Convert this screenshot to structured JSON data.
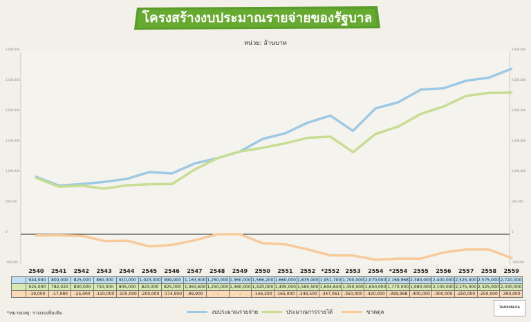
{
  "title": "โครงสร้างงบประมาณรายจ่ายของรัฐบาล",
  "unit_label": "หน่วย: ล้านบาท",
  "footnote": "*หมายเหตุ: รวมงบเพิ่มเติม",
  "logo": {
    "text": "THAIPUBLICA"
  },
  "colors": {
    "expenditure": "#9ec9e5",
    "revenue": "#c6dd93",
    "balance": "#f8c99b",
    "banner": "#5a9d2b"
  },
  "chart_data": {
    "type": "line",
    "title": "โครงสร้างงบประมาณรายจ่ายของรัฐบาล",
    "ylabel": "หน่วย: ล้านบาท",
    "ylim": [
      -500000,
      3000000
    ],
    "yticks": [
      -500000,
      0,
      500000,
      1000000,
      1500000,
      2000000,
      2500000,
      3000000
    ],
    "ytick_labels": [
      "-500,000",
      "0",
      "500,000",
      "1,000,000",
      "1,500,000",
      "2,000,000",
      "2,500,000",
      "3,000,000"
    ],
    "grid": false,
    "legend": "bottom",
    "categories": [
      "2540",
      "2541",
      "2542",
      "2543",
      "2544",
      "2545",
      "2546",
      "2547",
      "2548",
      "2549",
      "2550",
      "2551",
      "2552",
      "*2552",
      "2553",
      "2554",
      "*2554",
      "2555",
      "2556",
      "2557",
      "2558",
      "2559"
    ],
    "series": [
      {
        "name": "งบประมาณรายจ่าย",
        "values": [
          944000,
          800000,
          825000,
          860000,
          910000,
          1023000,
          999900,
          1163500,
          1250000,
          1360000,
          1566200,
          1660000,
          1835000,
          1951700,
          1700000,
          2070000,
          2169968,
          2380000,
          2400000,
          2525000,
          2575000,
          2720000
        ],
        "labels": [
          "944,000",
          "800,000",
          "825,000",
          "860,000",
          "910,000",
          "1,023,000",
          "999,900",
          "1,163,500",
          "1,250,000",
          "1,360,000",
          "1,566,200",
          "1,660,000",
          "1,835,000",
          "1,951,700",
          "1,700,000",
          "2,070,000",
          "2,169,968",
          "2,380,000",
          "2,400,000",
          "2,525,000",
          "2,575,000",
          "2,720,000"
        ]
      },
      {
        "name": "ประมาณการรายได้",
        "values": [
          925000,
          782020,
          800000,
          750000,
          805000,
          823000,
          825000,
          1063600,
          1250000,
          1360000,
          1420000,
          1495000,
          1585500,
          1604640,
          1350000,
          1650000,
          1770000,
          1980000,
          2100000,
          2275000,
          2325000,
          2330000
        ],
        "labels": [
          "925,000",
          "782,020",
          "800,000",
          "750,000",
          "805,000",
          "823,000",
          "825,000",
          "1,063,600",
          "1,250,000",
          "1,360,000",
          "1,420,000",
          "1,495,000",
          "1,585,500",
          "1,604,640",
          "1,350,000",
          "1,650,000",
          "1,770,000",
          "1,980,000",
          "2,100,000",
          "2,275,000",
          "2,325,000",
          "2,330,000"
        ]
      },
      {
        "name": "ขาดดุล",
        "values": [
          -19000,
          -17980,
          -25000,
          -110000,
          -105000,
          -200000,
          -174900,
          -99900,
          0,
          0,
          -146200,
          -165000,
          -249500,
          -347061,
          -350000,
          -420000,
          -399968,
          -400000,
          -300000,
          -250000,
          -250000,
          -390000
        ],
        "labels": [
          "-19,000",
          "-17,980",
          "-25,000",
          "-110,000",
          "-105,000",
          "-200,000",
          "-174,900",
          "-99,900",
          "-",
          "-",
          "-146,200",
          "-165,000",
          "-249,500",
          "-347,061",
          "-350,000",
          "-420,000",
          "-399,968",
          "-400,000",
          "-300,000",
          "-250,000",
          "-250,000",
          "-390,000"
        ]
      }
    ]
  }
}
